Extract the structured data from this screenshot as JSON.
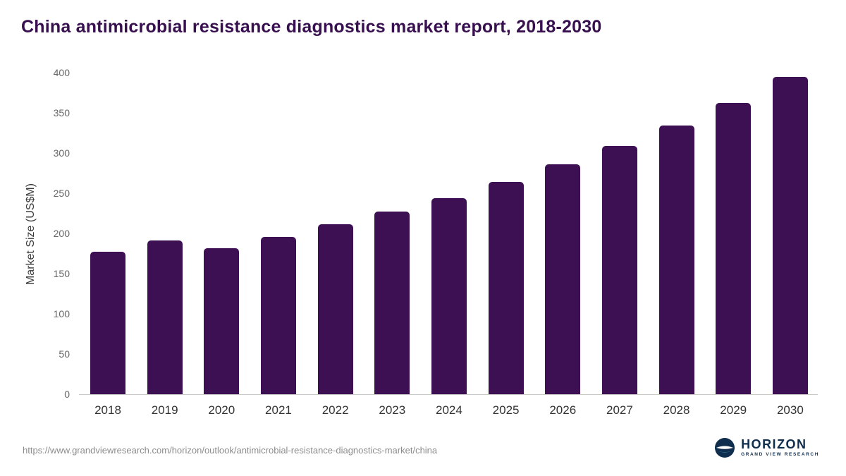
{
  "chart_data": {
    "type": "bar",
    "title": "China antimicrobial resistance diagnostics market report, 2018-2030",
    "xlabel": "",
    "ylabel": "Market Size (US$M)",
    "categories": [
      "2018",
      "2019",
      "2020",
      "2021",
      "2022",
      "2023",
      "2024",
      "2025",
      "2026",
      "2027",
      "2028",
      "2029",
      "2030"
    ],
    "values": [
      177,
      191,
      182,
      196,
      211,
      227,
      244,
      264,
      286,
      309,
      334,
      362,
      395
    ],
    "ylim": [
      0,
      400
    ],
    "ytick_step": 50,
    "grid": false,
    "legend": false,
    "colors": {
      "bar": "#3d1054",
      "title": "#38104f"
    }
  },
  "footer": {
    "source_url": "https://www.grandviewresearch.com/horizon/outlook/antimicrobial-resistance-diagnostics-market/china",
    "logo": {
      "name": "HORIZON",
      "subtitle": "GRAND VIEW RESEARCH"
    }
  }
}
